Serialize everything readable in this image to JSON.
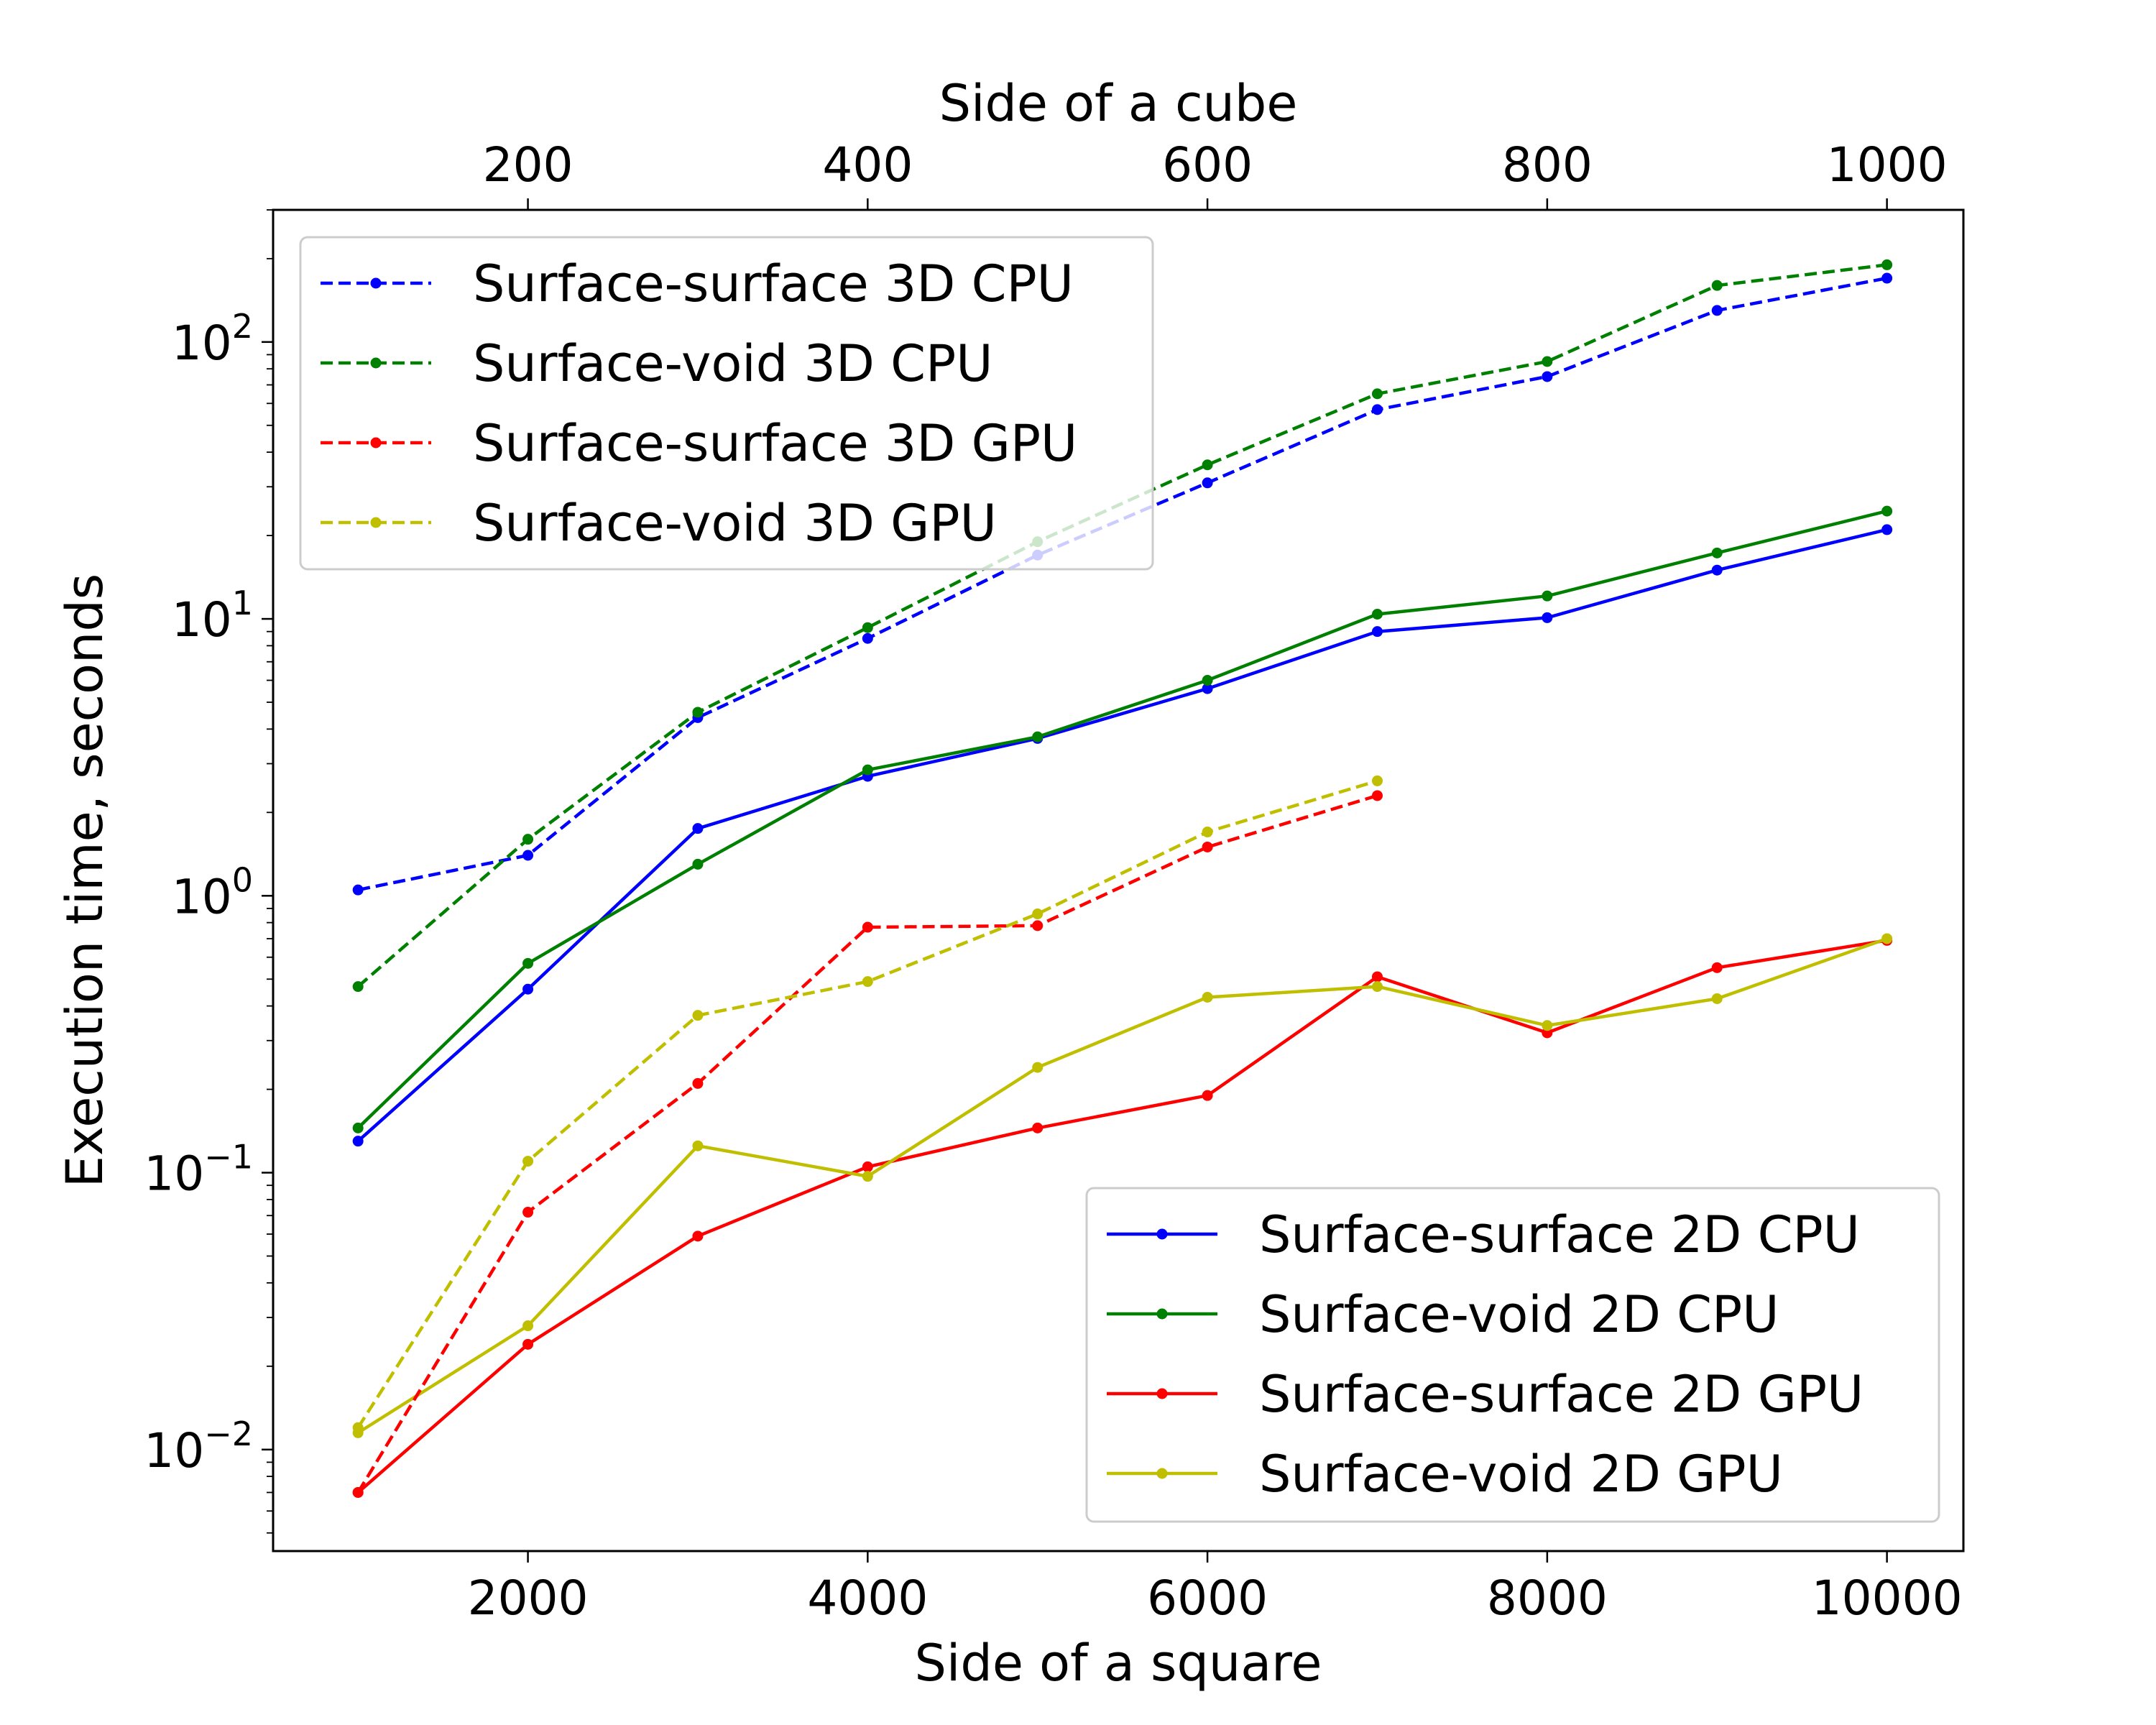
{
  "chart_data": {
    "type": "line",
    "xlabel": "Side of a square",
    "x2label": "Side of a cube",
    "ylabel": "Execution time, seconds",
    "yscale": "log",
    "xlim": [
      500,
      10450
    ],
    "x2lim": [
      50,
      1045
    ],
    "ylim": [
      0.0043,
      300
    ],
    "xticks": [
      "2000",
      "4000",
      "6000",
      "8000",
      "10000"
    ],
    "x2ticks": [
      "200",
      "400",
      "600",
      "800",
      "1000"
    ],
    "yticks": [
      {
        "value": 0.01,
        "exp": "−2"
      },
      {
        "value": 0.1,
        "exp": "−1"
      },
      {
        "value": 1,
        "exp": "0"
      },
      {
        "value": 10,
        "exp": "1"
      },
      {
        "value": 100,
        "exp": "2"
      }
    ],
    "grid": false,
    "series_3d": [
      {
        "name": "Surface-surface 3D CPU",
        "color": "#0000ff",
        "x": [
          100,
          200,
          300,
          400,
          500,
          600,
          700,
          800,
          900,
          1000
        ],
        "values": [
          1.05,
          1.4,
          4.4,
          8.5,
          17,
          31,
          57,
          75,
          130,
          170
        ]
      },
      {
        "name": "Surface-void 3D CPU",
        "color": "#008000",
        "x": [
          100,
          200,
          300,
          400,
          500,
          600,
          700,
          800,
          900,
          1000
        ],
        "values": [
          0.47,
          1.6,
          4.6,
          9.3,
          19,
          36,
          65,
          85,
          160,
          190
        ]
      },
      {
        "name": "Surface-surface 3D GPU",
        "color": "#ff0000",
        "x": [
          100,
          200,
          300,
          400,
          500,
          600,
          700
        ],
        "values": [
          0.007,
          0.072,
          0.21,
          0.77,
          0.78,
          1.5,
          2.3
        ]
      },
      {
        "name": "Surface-void 3D GPU",
        "color": "#bfbf00",
        "x": [
          100,
          200,
          300,
          400,
          500,
          600,
          700
        ],
        "values": [
          0.012,
          0.11,
          0.37,
          0.49,
          0.86,
          1.7,
          2.6
        ]
      }
    ],
    "series_2d": [
      {
        "name": "Surface-surface 2D CPU",
        "color": "#0000ff",
        "x": [
          1000,
          2000,
          3000,
          4000,
          5000,
          6000,
          7000,
          8000,
          9000,
          10000
        ],
        "values": [
          0.13,
          0.46,
          1.75,
          2.7,
          3.7,
          5.6,
          9.0,
          10.1,
          15,
          21
        ]
      },
      {
        "name": "Surface-void 2D CPU",
        "color": "#008000",
        "x": [
          1000,
          2000,
          3000,
          4000,
          5000,
          6000,
          7000,
          8000,
          9000,
          10000
        ],
        "values": [
          0.145,
          0.57,
          1.3,
          2.85,
          3.75,
          6.0,
          10.4,
          12.1,
          17.3,
          24.5
        ]
      },
      {
        "name": "Surface-surface 2D GPU",
        "color": "#ff0000",
        "x": [
          1000,
          2000,
          3000,
          4000,
          5000,
          6000,
          7000,
          8000,
          9000,
          10000
        ],
        "values": [
          0.007,
          0.024,
          0.059,
          0.105,
          0.145,
          0.19,
          0.51,
          0.32,
          0.55,
          0.69
        ]
      },
      {
        "name": "Surface-void 2D GPU",
        "color": "#bfbf00",
        "x": [
          1000,
          2000,
          3000,
          4000,
          5000,
          6000,
          7000,
          8000,
          9000,
          10000
        ],
        "values": [
          0.0115,
          0.028,
          0.125,
          0.097,
          0.24,
          0.43,
          0.47,
          0.34,
          0.425,
          0.7
        ]
      }
    ],
    "legend_3d_placement": "upper-left",
    "legend_2d_placement": "lower-right"
  }
}
